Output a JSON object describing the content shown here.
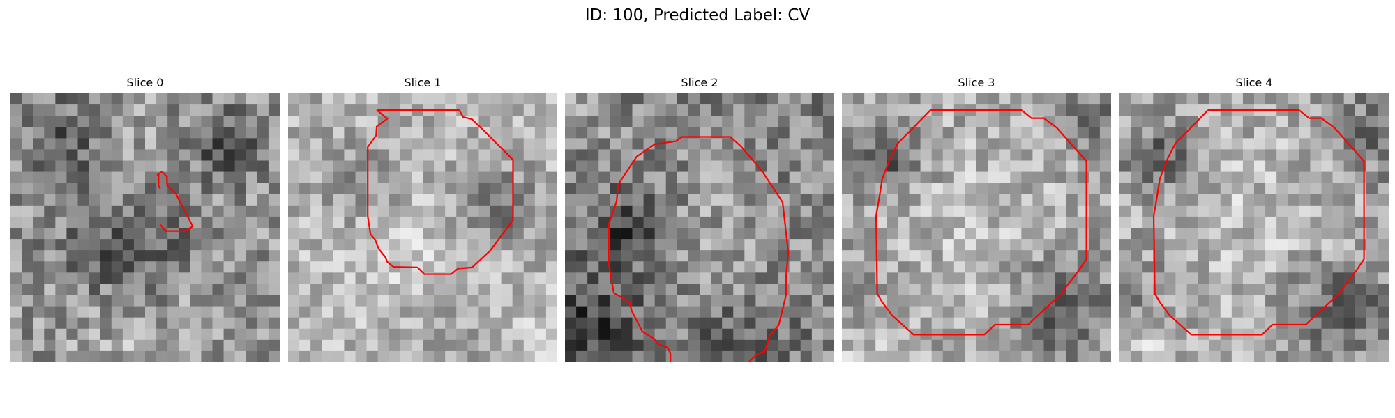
{
  "figure": {
    "title": "ID: 100, Predicted Label: CV"
  },
  "slices": [
    {
      "title": "Slice 0",
      "contour_color": "#ff0000",
      "image_description_icon": "grayscale-noise-image"
    },
    {
      "title": "Slice 1",
      "contour_color": "#ff0000",
      "image_description_icon": "grayscale-noise-image"
    },
    {
      "title": "Slice 2",
      "contour_color": "#ff0000",
      "image_description_icon": "grayscale-noise-image"
    },
    {
      "title": "Slice 3",
      "contour_color": "#ff0000",
      "image_description_icon": "grayscale-noise-image"
    },
    {
      "title": "Slice 4",
      "contour_color": "#ff0000",
      "image_description_icon": "grayscale-noise-image"
    }
  ]
}
